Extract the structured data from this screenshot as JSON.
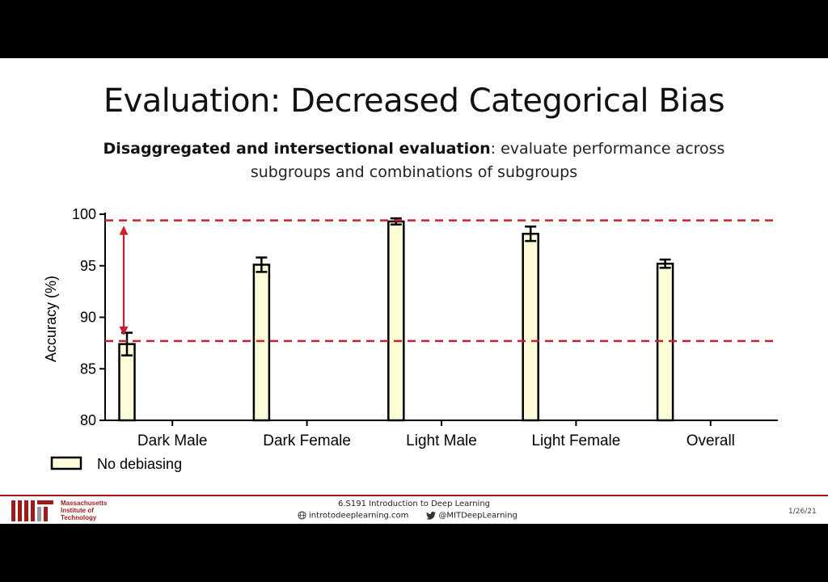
{
  "slide": {
    "title": "Evaluation: Decreased Categorical Bias",
    "subtitle_bold": "Disaggregated and intersectional evaluation",
    "subtitle_rest": ": evaluate performance across subgroups and combinations of subgroups"
  },
  "chart_data": {
    "type": "bar",
    "categories": [
      "Dark Male",
      "Dark Female",
      "Light Male",
      "Light Female",
      "Overall"
    ],
    "series": [
      {
        "name": "No debiasing",
        "values": [
          87.4,
          95.1,
          99.3,
          98.1,
          95.2
        ],
        "errors": [
          1.1,
          0.7,
          0.3,
          0.7,
          0.4
        ],
        "color": "#fcfcd8"
      }
    ],
    "ylabel": "Accuracy (%)",
    "ylim": [
      80,
      100
    ],
    "yticks": [
      "80",
      "85",
      "90",
      "95",
      "100"
    ],
    "reference_lines": [
      99.4,
      87.7
    ],
    "reference_color": "#cc1f2d",
    "grid": false,
    "legend_position": "bottom-left",
    "annotation": "double-headed arrow spanning the gap between the two dashed reference lines"
  },
  "footer": {
    "institution": [
      "Massachusetts",
      "Institute of",
      "Technology"
    ],
    "course": "6.S191 Introduction to Deep Learning",
    "website": "introtodeeplearning.com",
    "twitter": "@MITDeepLearning",
    "date": "1/26/21",
    "accent_color": "#9e1b1b"
  }
}
